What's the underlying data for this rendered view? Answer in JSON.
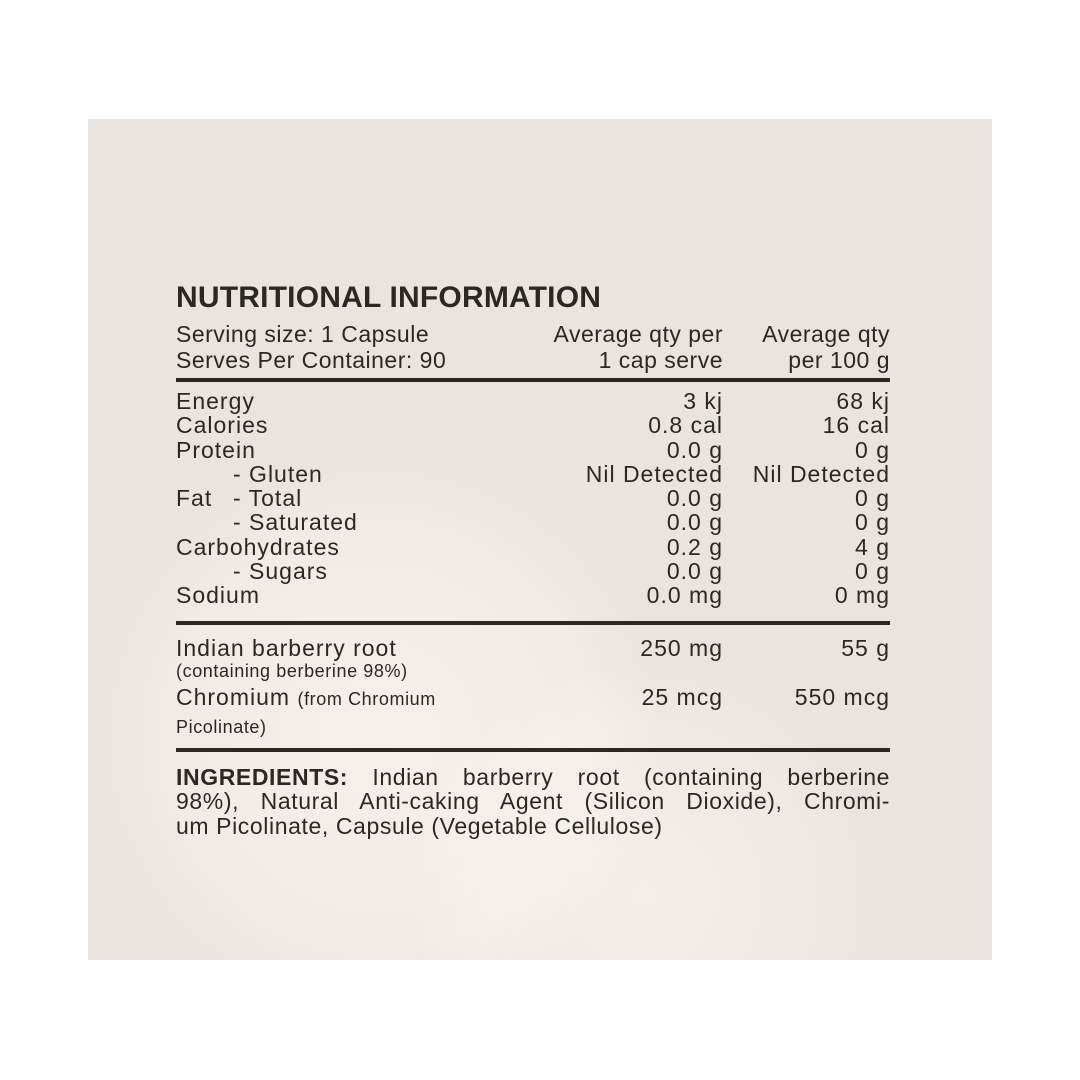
{
  "label": {
    "title": "NUTRITIONAL INFORMATION",
    "serving": {
      "line1": "Serving size: 1 Capsule",
      "line2": "Serves Per Container: 90"
    },
    "columns": {
      "per_serve_line1": "Average qty per",
      "per_serve_line2": "1 cap serve",
      "per_100g_line1": "Average qty",
      "per_100g_line2": "per 100 g"
    },
    "rows": [
      {
        "name": "Energy",
        "sub": "",
        "per_serve": "3 kj",
        "per_100g": "68 kj"
      },
      {
        "name": "Calories",
        "sub": "",
        "per_serve": "0.8 cal",
        "per_100g": "16 cal"
      },
      {
        "name": "Protein",
        "sub": "",
        "per_serve": "0.0 g",
        "per_100g": "0 g"
      },
      {
        "name": "",
        "sub": "- Gluten",
        "per_serve": "Nil Detected",
        "per_100g": "Nil Detected"
      },
      {
        "name": "Fat",
        "sub": "- Total",
        "per_serve": "0.0 g",
        "per_100g": "0 g"
      },
      {
        "name": "",
        "sub": "- Saturated",
        "per_serve": "0.0 g",
        "per_100g": "0 g"
      },
      {
        "name": "Carbohydrates",
        "sub": "",
        "per_serve": "0.2 g",
        "per_100g": "4 g"
      },
      {
        "name": "",
        "sub": "- Sugars",
        "per_serve": "0.0 g",
        "per_100g": "0 g"
      },
      {
        "name": "Sodium",
        "sub": "",
        "per_serve": "0.0 mg",
        "per_100g": "0 mg"
      }
    ],
    "actives": {
      "barberry": {
        "name": "Indian barberry root",
        "footnote": "(containing berberine 98%)",
        "per_serve": "250 mg",
        "per_100g": "55 g"
      },
      "chromium": {
        "name": "Chromium",
        "note": "(from Chromium Picolinate)",
        "per_serve": "25 mcg",
        "per_100g": "550 mcg"
      }
    },
    "ingredients": {
      "line1_bold": "INGREDIENTS:",
      "line1_rest": " Indian barberry root (containing berberine",
      "line2": "98%), Natural Anti-caking Agent (Silicon Dioxide), Chromi-",
      "line3": "um Picolinate, Capsule (Vegetable Cellulose)"
    },
    "colors": {
      "page_background": "#ffffff",
      "panel_background": "#e9e5de",
      "text": "#2b2823"
    }
  }
}
